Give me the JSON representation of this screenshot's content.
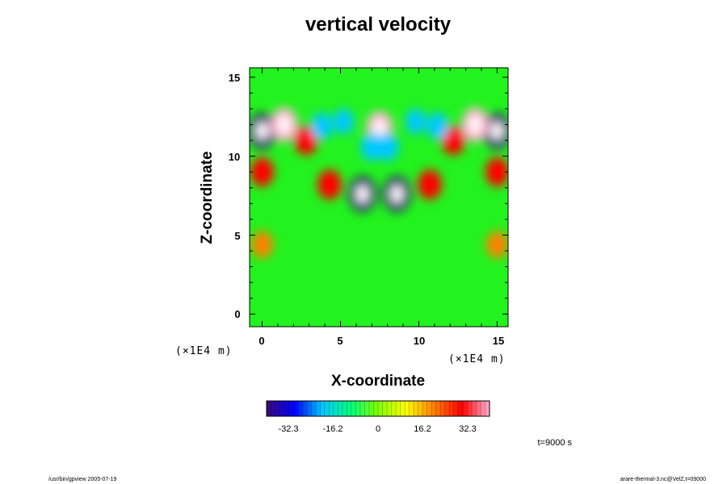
{
  "chart_data": {
    "type": "heatmap",
    "title": "vertical velocity",
    "xlabel": "X-coordinate",
    "ylabel": "Z-coordinate",
    "x_unit_label": "(×1E4 m)",
    "z_unit_label": "(×1E4 m)",
    "xlim": [
      -0.8,
      15.7
    ],
    "ylim": [
      -0.8,
      15.6
    ],
    "x_ticks": [
      "0",
      "5",
      "10",
      "15"
    ],
    "y_ticks": [
      "0",
      "5",
      "10",
      "15"
    ],
    "colorbar": {
      "range": [
        -40,
        40
      ],
      "ticks": [
        "-32.3",
        "-16.2",
        "0",
        "16.2",
        "32.3"
      ],
      "colors": [
        "#3a0a7a",
        "#0000ff",
        "#00c8ff",
        "#00ff80",
        "#80ff00",
        "#ffff00",
        "#ff8000",
        "#ff0000",
        "#ffb0d0"
      ]
    },
    "features": [
      {
        "x": 6.4,
        "z": 7.6,
        "w": -40
      },
      {
        "x": 8.6,
        "z": 7.6,
        "w": -40
      },
      {
        "x": 4.3,
        "z": 8.2,
        "w": 28
      },
      {
        "x": 10.7,
        "z": 8.2,
        "w": 28
      },
      {
        "x": 7.5,
        "z": 11.8,
        "w": 36
      },
      {
        "x": 7.0,
        "z": 10.6,
        "w": -24
      },
      {
        "x": 8.0,
        "z": 10.6,
        "w": -24
      },
      {
        "x": 0.0,
        "z": 11.6,
        "w": -40
      },
      {
        "x": 15.0,
        "z": 11.6,
        "w": -40
      },
      {
        "x": 1.4,
        "z": 12.0,
        "w": 38
      },
      {
        "x": 13.6,
        "z": 12.0,
        "w": 38
      },
      {
        "x": 0.0,
        "z": 9.0,
        "w": 26
      },
      {
        "x": 15.0,
        "z": 9.0,
        "w": 26
      },
      {
        "x": 0.0,
        "z": 4.4,
        "w": 22
      },
      {
        "x": 15.0,
        "z": 4.4,
        "w": 22
      },
      {
        "x": 2.8,
        "z": 11.0,
        "w": 26
      },
      {
        "x": 12.2,
        "z": 11.0,
        "w": 26
      },
      {
        "x": 3.8,
        "z": 11.9,
        "w": -22
      },
      {
        "x": 11.2,
        "z": 11.9,
        "w": -22
      },
      {
        "x": 5.2,
        "z": 12.2,
        "w": -18
      },
      {
        "x": 9.8,
        "z": 12.2,
        "w": -18
      }
    ]
  },
  "time_label": "t=9000 s",
  "footer_left": "/usr/bin/gpview 2005-07-19",
  "footer_right": "arare-thermal-3.nc@VelZ,t=09000"
}
